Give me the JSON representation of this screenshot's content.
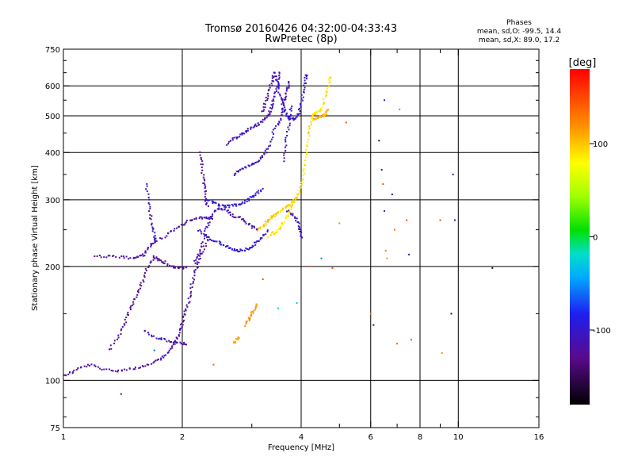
{
  "chart_data": {
    "type": "scatter",
    "title": "Tromsø 20160426 04:32:00-04:33:43",
    "subtitle": "RwPretec (8p)",
    "xlabel": "Frequency [MHz]",
    "ylabel": "Stationary phase Virtual Height [km]",
    "x_scale": "log",
    "y_scale": "log",
    "xlim": [
      1,
      16
    ],
    "ylim": [
      75,
      750
    ],
    "x_ticks": [
      1,
      2,
      4,
      6,
      8,
      10,
      16
    ],
    "x_tick_labels": [
      "1",
      "2",
      "4",
      "6",
      "8",
      "10",
      "16"
    ],
    "x_minor_ticks": [
      3,
      5,
      7,
      9
    ],
    "y_ticks": [
      75,
      100,
      200,
      300,
      400,
      500,
      600,
      750
    ],
    "y_tick_labels": [
      "75",
      "100",
      "200",
      "300",
      "400",
      "500",
      "600",
      "750"
    ],
    "grid": true,
    "grid_x": [
      2,
      4,
      6,
      8,
      10
    ],
    "grid_y": [
      100,
      200,
      300,
      400,
      500,
      600
    ],
    "colorbar": {
      "label": "[deg]",
      "range": [
        -180,
        180
      ],
      "ticks": [
        100,
        0,
        -100
      ],
      "tick_labels": [
        "100",
        "0",
        "-100"
      ]
    },
    "stats": {
      "heading": "Phases",
      "o_line": "mean, sd,O: -99.5, 14.4",
      "x_line": "mean, sd,X: 89.0, 17.2"
    },
    "traces": [
      {
        "phase": -120,
        "points": [
          [
            1.0,
            103
          ],
          [
            1.05,
            105
          ],
          [
            1.1,
            108
          ],
          [
            1.18,
            110
          ],
          [
            1.25,
            107
          ],
          [
            1.35,
            106
          ],
          [
            1.45,
            107
          ],
          [
            1.55,
            108
          ],
          [
            1.65,
            110
          ],
          [
            1.75,
            113
          ],
          [
            1.82,
            117
          ],
          [
            1.88,
            122
          ],
          [
            1.93,
            128
          ],
          [
            1.97,
            135
          ],
          [
            2.0,
            142
          ],
          [
            2.03,
            150
          ],
          [
            2.07,
            160
          ],
          [
            2.1,
            172
          ],
          [
            2.13,
            185
          ],
          [
            2.17,
            198
          ],
          [
            2.22,
            210
          ],
          [
            2.28,
            225
          ],
          [
            2.35,
            240
          ]
        ]
      },
      {
        "phase": -125,
        "points": [
          [
            1.3,
            120
          ],
          [
            1.38,
            130
          ],
          [
            1.42,
            140
          ],
          [
            1.46,
            150
          ],
          [
            1.5,
            160
          ],
          [
            1.54,
            170
          ],
          [
            1.58,
            180
          ],
          [
            1.62,
            195
          ],
          [
            1.66,
            205
          ],
          [
            1.7,
            212
          ],
          [
            1.75,
            208
          ],
          [
            1.8,
            205
          ],
          [
            1.88,
            200
          ],
          [
            1.95,
            198
          ],
          [
            2.0,
            198
          ],
          [
            2.05,
            200
          ]
        ]
      },
      {
        "phase": -110,
        "points": [
          [
            1.6,
            135
          ],
          [
            1.7,
            130
          ],
          [
            1.8,
            128
          ],
          [
            1.9,
            126
          ],
          [
            2.0,
            125
          ],
          [
            2.05,
            125
          ]
        ]
      },
      {
        "phase": -115,
        "points": [
          [
            1.2,
            213
          ],
          [
            1.3,
            212
          ],
          [
            1.4,
            212
          ],
          [
            1.5,
            210
          ],
          [
            1.55,
            212
          ],
          [
            1.6,
            215
          ],
          [
            1.65,
            225
          ],
          [
            1.7,
            232
          ],
          [
            1.8,
            240
          ],
          [
            1.9,
            250
          ],
          [
            2.0,
            258
          ],
          [
            2.1,
            265
          ],
          [
            2.2,
            268
          ],
          [
            2.3,
            270
          ],
          [
            2.4,
            268
          ]
        ]
      },
      {
        "phase": -105,
        "points": [
          [
            1.62,
            330
          ],
          [
            1.64,
            300
          ],
          [
            1.66,
            275
          ],
          [
            1.68,
            255
          ],
          [
            1.7,
            240
          ],
          [
            1.72,
            230
          ]
        ]
      },
      {
        "phase": -110,
        "points": [
          [
            2.15,
            205
          ],
          [
            2.2,
            215
          ],
          [
            2.25,
            230
          ],
          [
            2.3,
            250
          ],
          [
            2.35,
            265
          ],
          [
            2.42,
            280
          ],
          [
            2.5,
            285
          ],
          [
            2.6,
            280
          ],
          [
            2.7,
            272
          ],
          [
            2.8,
            268
          ],
          [
            2.9,
            262
          ],
          [
            3.0,
            255
          ],
          [
            3.1,
            250
          ]
        ]
      },
      {
        "phase": -95,
        "points": [
          [
            2.2,
            250
          ],
          [
            2.3,
            240
          ],
          [
            2.4,
            235
          ],
          [
            2.5,
            230
          ],
          [
            2.6,
            225
          ],
          [
            2.7,
            222
          ],
          [
            2.8,
            220
          ],
          [
            2.9,
            222
          ],
          [
            3.0,
            225
          ],
          [
            3.1,
            232
          ],
          [
            3.2,
            240
          ],
          [
            3.3,
            250
          ]
        ]
      },
      {
        "phase": -90,
        "points": [
          [
            2.3,
            300
          ],
          [
            2.4,
            295
          ],
          [
            2.5,
            290
          ],
          [
            2.6,
            288
          ],
          [
            2.7,
            290
          ],
          [
            2.8,
            292
          ],
          [
            2.9,
            298
          ],
          [
            3.0,
            305
          ],
          [
            3.1,
            312
          ],
          [
            3.2,
            320
          ]
        ]
      },
      {
        "phase": -120,
        "points": [
          [
            2.22,
            400
          ],
          [
            2.24,
            370
          ],
          [
            2.26,
            340
          ],
          [
            2.28,
            320
          ],
          [
            2.3,
            300
          ],
          [
            2.32,
            285
          ]
        ]
      },
      {
        "phase": -110,
        "points": [
          [
            2.6,
            420
          ],
          [
            2.7,
            435
          ],
          [
            2.8,
            445
          ],
          [
            2.9,
            455
          ],
          [
            3.0,
            465
          ],
          [
            3.1,
            475
          ],
          [
            3.2,
            485
          ],
          [
            3.3,
            500
          ],
          [
            3.35,
            520
          ],
          [
            3.4,
            545
          ],
          [
            3.45,
            575
          ],
          [
            3.5,
            620
          ],
          [
            3.52,
            660
          ]
        ]
      },
      {
        "phase": -105,
        "points": [
          [
            2.7,
            350
          ],
          [
            2.8,
            358
          ],
          [
            2.9,
            365
          ],
          [
            3.0,
            372
          ],
          [
            3.1,
            380
          ],
          [
            3.2,
            390
          ],
          [
            3.3,
            410
          ],
          [
            3.38,
            440
          ],
          [
            3.45,
            480
          ]
        ]
      },
      {
        "phase": -120,
        "points": [
          [
            3.2,
            510
          ],
          [
            3.25,
            540
          ],
          [
            3.3,
            570
          ],
          [
            3.35,
            600
          ],
          [
            3.4,
            630
          ],
          [
            3.42,
            660
          ]
        ]
      },
      {
        "phase": -100,
        "points": [
          [
            3.45,
            640
          ],
          [
            3.5,
            600
          ],
          [
            3.55,
            560
          ],
          [
            3.6,
            530
          ],
          [
            3.65,
            510
          ],
          [
            3.7,
            495
          ],
          [
            3.8,
            490
          ],
          [
            3.9,
            495
          ],
          [
            3.95,
            510
          ],
          [
            4.0,
            540
          ],
          [
            4.05,
            580
          ],
          [
            4.1,
            620
          ],
          [
            4.12,
            650
          ]
        ]
      },
      {
        "phase": -110,
        "points": [
          [
            3.5,
            470
          ],
          [
            3.55,
            500
          ],
          [
            3.6,
            530
          ],
          [
            3.65,
            560
          ],
          [
            3.7,
            590
          ],
          [
            3.72,
            620
          ]
        ]
      },
      {
        "phase": -105,
        "points": [
          [
            3.6,
            380
          ],
          [
            3.65,
            420
          ],
          [
            3.7,
            460
          ],
          [
            3.75,
            500
          ],
          [
            3.78,
            540
          ]
        ]
      },
      {
        "phase": -110,
        "points": [
          [
            3.7,
            280
          ],
          [
            3.8,
            275
          ],
          [
            3.9,
            265
          ],
          [
            3.95,
            255
          ],
          [
            4.0,
            245
          ],
          [
            4.02,
            235
          ]
        ]
      },
      {
        "phase": 90,
        "points": [
          [
            3.3,
            240
          ],
          [
            3.4,
            245
          ],
          [
            3.5,
            250
          ],
          [
            3.6,
            262
          ],
          [
            3.7,
            275
          ],
          [
            3.8,
            290
          ],
          [
            3.9,
            305
          ],
          [
            4.0,
            325
          ],
          [
            4.05,
            350
          ],
          [
            4.1,
            380
          ],
          [
            4.15,
            420
          ],
          [
            4.2,
            460
          ],
          [
            4.25,
            490
          ],
          [
            4.3,
            505
          ],
          [
            4.4,
            510
          ],
          [
            4.5,
            520
          ],
          [
            4.6,
            560
          ],
          [
            4.7,
            610
          ],
          [
            4.75,
            640
          ]
        ]
      },
      {
        "phase": 95,
        "points": [
          [
            3.25,
            260
          ],
          [
            3.35,
            270
          ],
          [
            3.45,
            275
          ],
          [
            3.55,
            280
          ],
          [
            3.65,
            285
          ],
          [
            3.75,
            292
          ],
          [
            3.85,
            300
          ],
          [
            3.95,
            310
          ]
        ]
      },
      {
        "phase": 100,
        "points": [
          [
            3.1,
            250
          ],
          [
            3.2,
            255
          ],
          [
            3.3,
            262
          ],
          [
            3.4,
            270
          ],
          [
            3.5,
            278
          ]
        ]
      },
      {
        "phase": 105,
        "points": [
          [
            4.3,
            490
          ],
          [
            4.4,
            495
          ],
          [
            4.5,
            498
          ],
          [
            4.6,
            505
          ],
          [
            4.7,
            520
          ]
        ]
      },
      {
        "phase": 120,
        "points": [
          [
            2.9,
            140
          ],
          [
            2.95,
            145
          ],
          [
            3.0,
            150
          ],
          [
            3.05,
            155
          ],
          [
            3.1,
            160
          ]
        ]
      },
      {
        "phase": 110,
        "points": [
          [
            2.7,
            125
          ],
          [
            2.75,
            128
          ],
          [
            2.8,
            130
          ]
        ]
      }
    ],
    "scattered_points": [
      {
        "f": 1.4,
        "h": 92,
        "phase": -120
      },
      {
        "f": 1.7,
        "h": 120,
        "phase": -60
      },
      {
        "f": 2.4,
        "h": 110,
        "phase": 140
      },
      {
        "f": 3.2,
        "h": 185,
        "phase": 150
      },
      {
        "f": 3.5,
        "h": 155,
        "phase": -10
      },
      {
        "f": 3.9,
        "h": 160,
        "phase": -30
      },
      {
        "f": 4.2,
        "h": 200,
        "phase": 140
      },
      {
        "f": 4.5,
        "h": 210,
        "phase": -60
      },
      {
        "f": 4.8,
        "h": 198,
        "phase": 150
      },
      {
        "f": 5.0,
        "h": 260,
        "phase": 120
      },
      {
        "f": 5.2,
        "h": 480,
        "phase": 150
      },
      {
        "f": 6.0,
        "h": 150,
        "phase": 130
      },
      {
        "f": 6.1,
        "h": 140,
        "phase": -150
      },
      {
        "f": 6.3,
        "h": 430,
        "phase": -150
      },
      {
        "f": 6.4,
        "h": 360,
        "phase": -110
      },
      {
        "f": 6.45,
        "h": 330,
        "phase": 150
      },
      {
        "f": 6.5,
        "h": 550,
        "phase": -100
      },
      {
        "f": 6.5,
        "h": 280,
        "phase": -100
      },
      {
        "f": 6.55,
        "h": 220,
        "phase": 130
      },
      {
        "f": 6.6,
        "h": 210,
        "phase": 120
      },
      {
        "f": 6.8,
        "h": 310,
        "phase": -110
      },
      {
        "f": 6.9,
        "h": 250,
        "phase": 140
      },
      {
        "f": 7.0,
        "h": 125,
        "phase": 140
      },
      {
        "f": 7.1,
        "h": 520,
        "phase": 130
      },
      {
        "f": 7.4,
        "h": 265,
        "phase": 150
      },
      {
        "f": 7.5,
        "h": 215,
        "phase": -110
      },
      {
        "f": 7.6,
        "h": 128,
        "phase": 150
      },
      {
        "f": 9.0,
        "h": 265,
        "phase": 150
      },
      {
        "f": 9.1,
        "h": 118,
        "phase": 120
      },
      {
        "f": 9.6,
        "h": 150,
        "phase": -150
      },
      {
        "f": 9.7,
        "h": 350,
        "phase": -110
      },
      {
        "f": 9.8,
        "h": 265,
        "phase": -120
      },
      {
        "f": 12.2,
        "h": 198,
        "phase": -155
      }
    ]
  }
}
